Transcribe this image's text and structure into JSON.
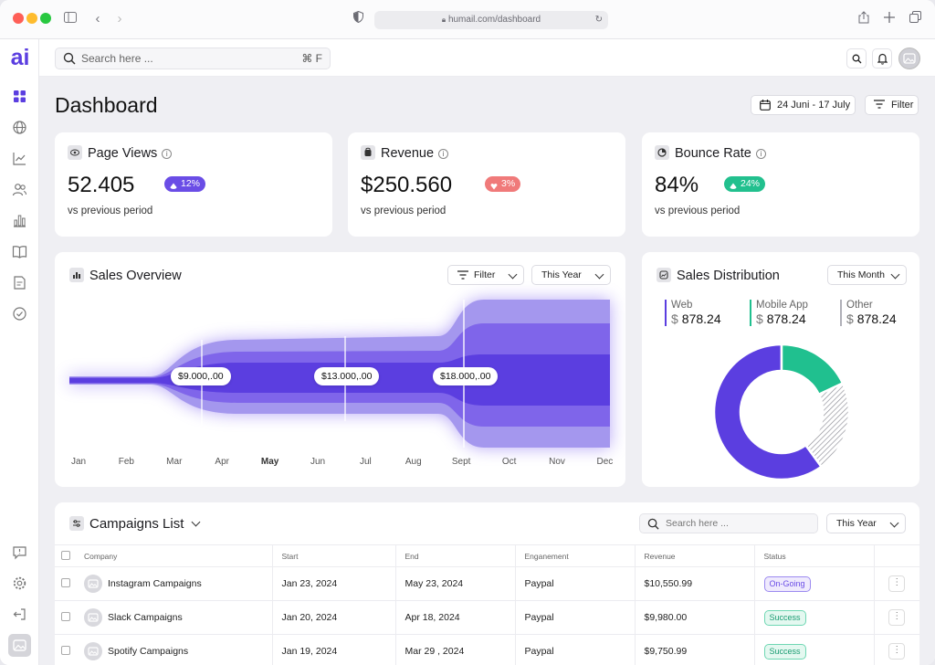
{
  "browser": {
    "url": "humail.com/dashboard"
  },
  "topbar": {
    "search_placeholder": "Search here ...",
    "shortcut": "⌘ F"
  },
  "logo": "ai",
  "header": {
    "title": "Dashboard",
    "date_range": "24 Juni - 17 July",
    "filter_label": "Filter"
  },
  "stats": [
    {
      "title": "Page Views",
      "value": "52.405",
      "change": "12%",
      "direction": "up",
      "badge_color": "#6a4de6",
      "sub": "vs previous period",
      "icon": "eye-icon"
    },
    {
      "title": "Revenue",
      "value": "$250.560",
      "change": "3%",
      "direction": "down",
      "badge_color": "#f07a7a",
      "sub": "vs previous period",
      "icon": "wallet-icon"
    },
    {
      "title": "Bounce Rate",
      "value": "84%",
      "change": "24%",
      "direction": "up",
      "badge_color": "#22c08e",
      "sub": "vs previous period",
      "icon": "chart-pie-icon"
    }
  ],
  "sales_overview": {
    "title": "Sales Overview",
    "filter_label": "Filter",
    "period": "This Year",
    "chart_data": {
      "type": "area",
      "categories": [
        "Jan",
        "Feb",
        "Mar",
        "Apr",
        "May",
        "Jun",
        "Jul",
        "Aug",
        "Sept",
        "Oct",
        "Nov",
        "Dec"
      ],
      "highlight_category": "May",
      "annotations": [
        "$9.000,.00",
        "$13.000,.00",
        "$18.000,.00"
      ]
    }
  },
  "sales_distribution": {
    "title": "Sales Distribution",
    "period": "This Month",
    "chart_data": {
      "type": "pie",
      "donut": true,
      "labels": [
        "Web",
        "Mobile App",
        "Other"
      ],
      "amounts": [
        "878.24",
        "878.24",
        "878.24"
      ],
      "currency": "$",
      "values": [
        60,
        18,
        22
      ],
      "colors": [
        "#5b3ee0",
        "#20c08f",
        "#b0b0b8"
      ]
    }
  },
  "campaigns": {
    "title": "Campaigns List",
    "search_placeholder": "Search here ...",
    "period": "This Year",
    "columns": [
      "Company",
      "Start",
      "End",
      "Enganement",
      "Revenue",
      "Status"
    ],
    "rows": [
      {
        "company": "Instagram Campaigns",
        "start": "Jan 23, 2024",
        "end": "May 23, 2024",
        "engagement": "Paypal",
        "revenue": "$10,550.99",
        "status": "On-Going"
      },
      {
        "company": "Slack Campaigns",
        "start": "Jan 20, 2024",
        "end": "Apr 18, 2024",
        "engagement": "Paypal",
        "revenue": "$9,980.00",
        "status": "Success"
      },
      {
        "company": "Spotify Campaigns",
        "start": "Jan 19, 2024",
        "end": "Mar 29 , 2024",
        "engagement": "Paypal",
        "revenue": "$9,750.99",
        "status": "Success"
      }
    ]
  },
  "menu_dots": "⋮",
  "colors": {
    "accent": "#5b3ee0",
    "ongoing": "#6a4de6",
    "success": "#20c08f"
  }
}
